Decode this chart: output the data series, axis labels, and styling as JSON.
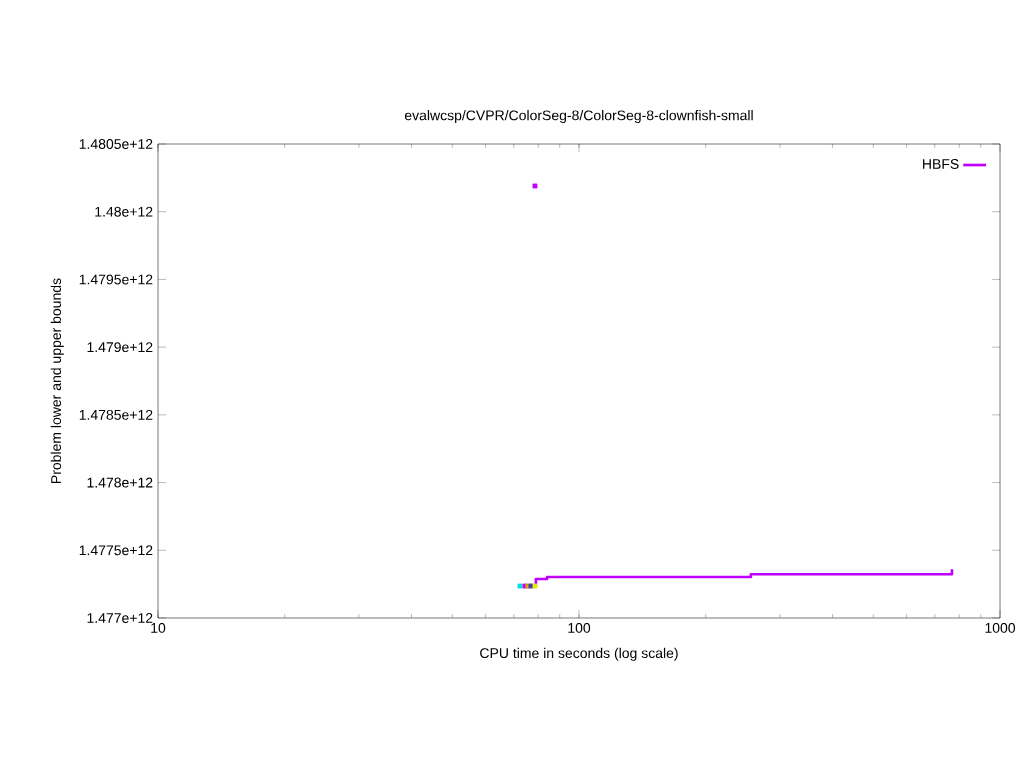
{
  "chart_data": {
    "type": "step",
    "title": "evalwcsp/CVPR/ColorSeg-8/ColorSeg-8-clownfish-small",
    "xlabel": "CPU time in seconds (log scale)",
    "ylabel": "Problem lower and upper bounds",
    "log": "x",
    "xlim": [
      10,
      1000
    ],
    "xticks": [
      10,
      100,
      1000
    ],
    "ylim": [
      1477000000000,
      1480500000000
    ],
    "yticks": [
      {
        "value": 1477000000000,
        "label": "1.477e+12"
      },
      {
        "value": 1477500000000,
        "label": "1.4775e+12"
      },
      {
        "value": 1478000000000,
        "label": "1.478e+12"
      },
      {
        "value": 1478500000000,
        "label": "1.4785e+12"
      },
      {
        "value": 1479000000000,
        "label": "1.479e+12"
      },
      {
        "value": 1479500000000,
        "label": "1.4795e+12"
      },
      {
        "value": 1480000000000,
        "label": "1.48e+12"
      },
      {
        "value": 1480500000000,
        "label": "1.4805e+12"
      }
    ],
    "legend": "top right",
    "marker": "none",
    "series": [
      {
        "name": "HBFS",
        "color": "#c000ff",
        "x": [
          78.6,
          79,
          84,
          256,
          769
        ],
        "values": [
          1477236000000,
          1477288000000,
          1477303000000,
          1477323000000,
          1477360000000
        ]
      },
      {
        "type": "scatter",
        "marker": "square",
        "color": "#c000ff",
        "x": [
          78.6
        ],
        "values": [
          1480190000000
        ]
      },
      {
        "type": "scatter",
        "marker": "square",
        "colors": [
          "#00e0e0",
          "#c000ff",
          "#e0a000",
          "#4040c0",
          "#e8e800"
        ],
        "x": [
          72.4,
          74.4,
          75.6,
          76.9,
          78.6
        ],
        "values": [
          1477236000000,
          1477236000000,
          1477236000000,
          1477236000000,
          1477236000000
        ]
      }
    ]
  }
}
